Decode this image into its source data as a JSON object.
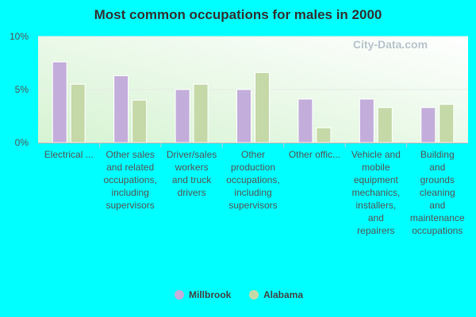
{
  "watermark": "City-Data.com",
  "chart_data": {
    "type": "bar",
    "title": "Most common occupations for males in 2000",
    "xlabel": "",
    "ylabel": "",
    "ylim": [
      0,
      10
    ],
    "y_ticks": [
      "0%",
      "5%",
      "10%"
    ],
    "categories": [
      [
        "Electrical ..."
      ],
      [
        "Other sales",
        "and related",
        "occupations,",
        "including",
        "supervisors"
      ],
      [
        "Driver/sales",
        "workers",
        "and truck",
        "drivers"
      ],
      [
        "Other",
        "production",
        "occupations,",
        "including",
        "supervisors"
      ],
      [
        "Other offic..."
      ],
      [
        "Vehicle and",
        "mobile",
        "equipment",
        "mechanics,",
        "installers,",
        "and",
        "repairers"
      ],
      [
        "Building",
        "and",
        "grounds",
        "cleaning",
        "and",
        "maintenance",
        "occupations"
      ]
    ],
    "series": [
      {
        "name": "Millbrook",
        "color": "#c3aedb",
        "values": [
          7.6,
          6.3,
          5.0,
          5.0,
          4.1,
          4.1,
          3.3
        ]
      },
      {
        "name": "Alabama",
        "color": "#c5d9a8",
        "values": [
          5.5,
          4.0,
          5.5,
          6.6,
          1.4,
          3.3,
          3.6
        ]
      }
    ],
    "grid": true,
    "legend_position": "bottom"
  }
}
